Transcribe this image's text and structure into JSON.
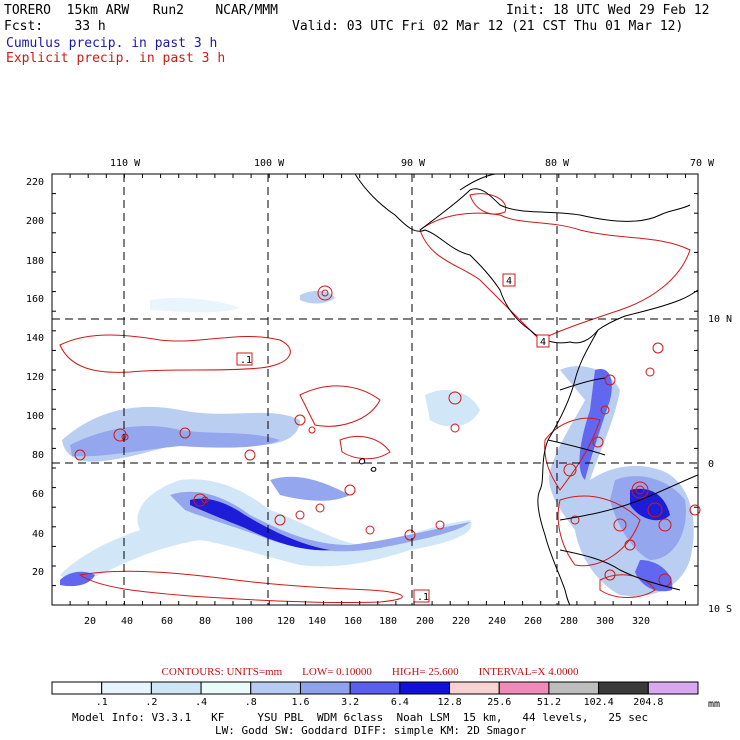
{
  "header": {
    "left_line1": "TORERO  15km ARW   Run2    NCAR/MMM",
    "init": "Init: 18 UTC Wed 29 Feb 12",
    "left_line2": "Fcst:    33 h",
    "valid": "Valid: 03 UTC Fri 02 Mar 12 (21 CST Thu 01 Mar 12)",
    "cumulus": "Cumulus precip. in past 3 h",
    "explicit": "Explicit precip. in past 3 h"
  },
  "map": {
    "lon_labels": [
      "110 W",
      "100 W",
      "90 W",
      "80 W",
      "70 W"
    ],
    "lat_labels": [
      "10 N",
      "0",
      "10 S"
    ],
    "y_ticks": [
      "220",
      "200",
      "180",
      "160",
      "140",
      "120",
      "100",
      "80",
      "60",
      "40",
      "20"
    ],
    "x_ticks": [
      "20",
      "40",
      "60",
      "80",
      "100",
      "120",
      "140",
      "160",
      "180",
      "200",
      "220",
      "240",
      "260",
      "280",
      "300",
      "320"
    ],
    "contour_labels": [
      ".1",
      "4",
      "4",
      ".1"
    ],
    "colors": {
      "contour": "#d01818",
      "coast": "#000000",
      "grid": "#000000"
    }
  },
  "contours_note": {
    "contours": "CONTOURS:  UNITS=mm",
    "low": "LOW=  0.10000",
    "high": "HIGH=  25.600",
    "interval": "INTERVAL=X  4.0000"
  },
  "colorbar": {
    "labels": [
      ".1",
      ".2",
      ".4",
      ".8",
      "1.6",
      "3.2",
      "6.4",
      "12.8",
      "25.6",
      "51.2",
      "102.4",
      "204.8"
    ],
    "unit": "mm",
    "colors": [
      "#ffffff",
      "#e8f4fc",
      "#cfe6f7",
      "#e9fbfb",
      "#b7ccf2",
      "#8fa2ee",
      "#5a5ff0",
      "#1010d8",
      "#fad1d1",
      "#f08ab8",
      "#bdbdbd",
      "#3a3a3a",
      "#d8a8f0"
    ]
  },
  "model_info": {
    "line1": "Model Info: V3.3.1   KF     YSU PBL  WDM 6class  Noah LSM  15 km,   44 levels,   25 sec",
    "line2": "LW: Godd SW: Goddard DIFF: simple KM: 2D Smagor"
  }
}
